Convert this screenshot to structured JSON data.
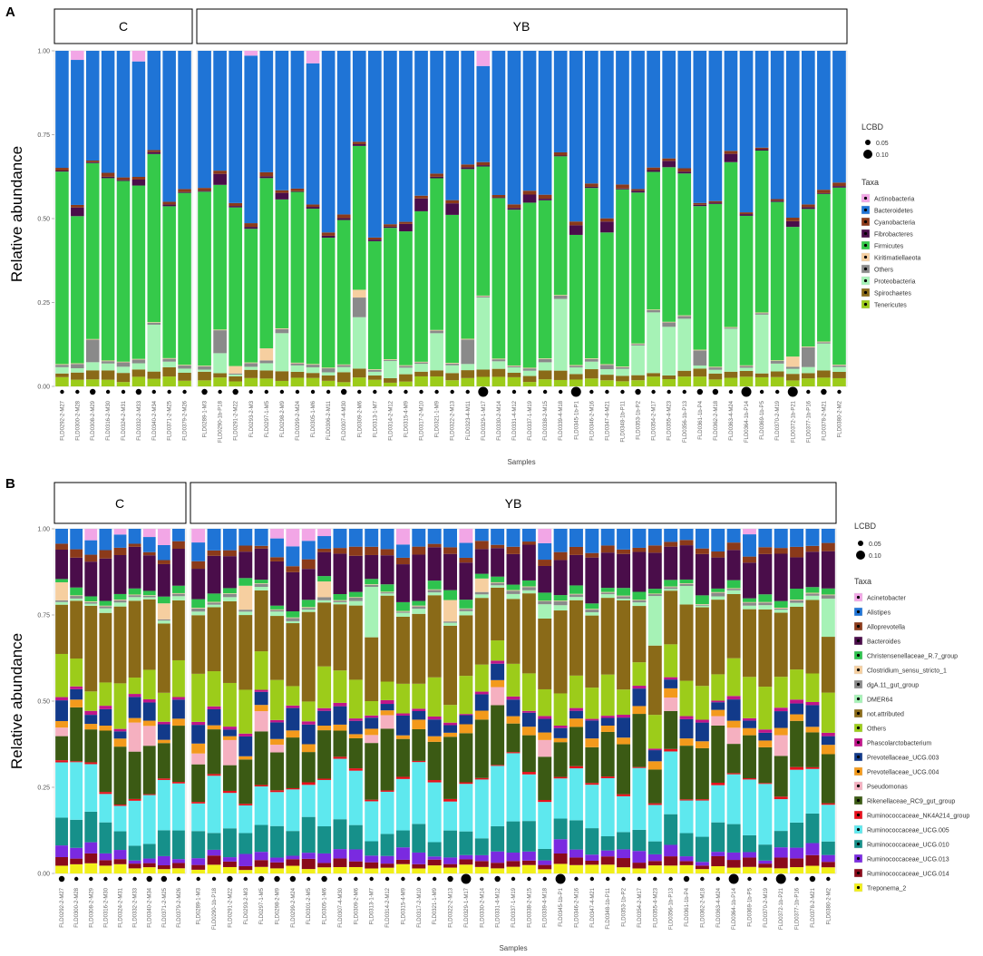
{
  "chart_data": [
    {
      "type": "bar",
      "panel_label": "A",
      "strip_labels": [
        "C",
        "YB"
      ],
      "ylabel": "Relative abundance",
      "xlabel": "Samples",
      "ylim": [
        0,
        1
      ],
      "yticks": [
        "0.00",
        "0.25",
        "0.50",
        "0.75",
        "1.00"
      ],
      "groups": [
        {
          "name": "C",
          "categories": [
            "FLD0292-2-M27",
            "FLD0300-2-M28",
            "FLD0308-2-M29",
            "FLD0316-2-M30",
            "FLD0324-2-M31",
            "FLD0332-2-M33",
            "FLD0340-2-M34",
            "FLD0371-2-M25",
            "FLD0379-2-M26"
          ]
        },
        {
          "name": "YB",
          "categories": [
            "FLD0289-1-M3",
            "FLD0290-1b-P18",
            "FLD0291-2-M22",
            "FLD0293-2-M3",
            "FLD0297-1-M5",
            "FLD0298-2-M9",
            "FLD0299-2-M24",
            "FLD0305-1-M6",
            "FLD0306-2-M11",
            "FLD0307-4-M30",
            "FLD0309-2-M6",
            "FLD0313-1-M7",
            "FLD0314-2-M12",
            "FLD0315-4-M9",
            "FLD0317-2-M10",
            "FLD0321-1-M9",
            "FLD0322-2-M13",
            "FLD0323-4-M11",
            "FLD0329-1-M17",
            "FLD0330-2-M14",
            "FLD0331-4-M12",
            "FLD0337-1-M19",
            "FLD0338-2-M15",
            "FLD0339-4-M18",
            "FLD0345-1b-P1",
            "FLD0346-2-M16",
            "FLD0347-4-M21",
            "FLD0348-1b-P11",
            "FLD0353-1b-P2",
            "FLD0354-2-M17",
            "FLD0355-4-M23",
            "FLD0356-1b-P13",
            "FLD0361-1b-P4",
            "FLD0362-2-M18",
            "FLD0363-4-M24",
            "FLD0364-1b-P14",
            "FLD0369-1b-P5",
            "FLD0370-2-M19",
            "FLD0372-1b-P21",
            "FLD0377-1b-P16",
            "FLD0378-2-M21",
            "FLD0380-2-M2"
          ]
        }
      ],
      "lcbd_legend": {
        "title": "LCBD",
        "values": [
          "0.05",
          "0.10"
        ]
      },
      "lcbd_large_samples": [
        "FLD0329-1-M17",
        "FLD0345-1b-P1",
        "FLD0364-1b-P14",
        "FLD0372-1b-P21"
      ],
      "taxa_legend_title": "Taxa",
      "taxa": [
        {
          "name": "Actinobacteria",
          "color": "#f2a6e6"
        },
        {
          "name": "Bacteroidetes",
          "color": "#1f74d6"
        },
        {
          "name": "Cyanobacteria",
          "color": "#8b3a1a"
        },
        {
          "name": "Fibrobacteres",
          "color": "#4a0d4a"
        },
        {
          "name": "Firmicutes",
          "color": "#35c94a"
        },
        {
          "name": "Kiritimatiellaeota",
          "color": "#f6cfa0"
        },
        {
          "name": "Others",
          "color": "#8a8a8a"
        },
        {
          "name": "Proteobacteria",
          "color": "#a6f2b6"
        },
        {
          "name": "Spirochaetes",
          "color": "#8a6a18"
        },
        {
          "name": "Tenericutes",
          "color": "#9ccc1a"
        }
      ]
    },
    {
      "type": "bar",
      "panel_label": "B",
      "strip_labels": [
        "C",
        "YB"
      ],
      "ylabel": "Relative abundance",
      "xlabel": "Samples",
      "ylim": [
        0,
        1
      ],
      "yticks": [
        "0.00",
        "0.25",
        "0.50",
        "0.75",
        "1.00"
      ],
      "groups": [
        {
          "name": "C",
          "categories": [
            "FLD0292-2-M27",
            "FLD0300-2-M28",
            "FLD0308-2-M29",
            "FLD0316-2-M30",
            "FLD0324-2-M31",
            "FLD0332-2-M33",
            "FLD0340-2-M34",
            "FLD0371-2-M25",
            "FLD0379-2-M26"
          ]
        },
        {
          "name": "YB",
          "categories": [
            "FLD0289-1-M3",
            "FLD0290-1b-P18",
            "FLD0291-2-M22",
            "FLD0293-2-M3",
            "FLD0297-1-M5",
            "FLD0298-2-M9",
            "FLD0299-2-M24",
            "FLD0301-2-M5",
            "FLD0305-1-M6",
            "FLD0307-4-M30",
            "FLD0309-2-M6",
            "FLD0313-1-M7",
            "FLD0314-2-M12",
            "FLD0315-4-M9",
            "FLD0317-2-M10",
            "FLD0321-1-M9",
            "FLD0322-2-M13",
            "FLD0329-1-M17",
            "FLD0330-2-M14",
            "FLD0331-4-M12",
            "FLD0337-1-M19",
            "FLD0338-2-M15",
            "FLD0339-4-M18",
            "FLD0345-1b-P1",
            "FLD0346-2-M16",
            "FLD0347-4-M21",
            "FLD0348-1b-P11",
            "FLD0353-1b-P2",
            "FLD0354-2-M17",
            "FLD0355-4-M23",
            "FLD0356-1b-P13",
            "FLD0361-1b-P4",
            "FLD0362-2-M18",
            "FLD0363-4-M24",
            "FLD0364-1b-P14",
            "FLD0369-1b-P5",
            "FLD0370-2-M19",
            "FLD0372-1b-P21",
            "FLD0377-1b-P16",
            "FLD0378-2-M21",
            "FLD0380-2-M2"
          ]
        }
      ],
      "lcbd_legend": {
        "title": "LCBD",
        "values": [
          "0.05",
          "0.10"
        ]
      },
      "lcbd_large_samples": [
        "FLD0329-1-M17",
        "FLD0345-1b-P1",
        "FLD0364-1b-P14",
        "FLD0372-1b-P21"
      ],
      "taxa_legend_title": "Taxa",
      "taxa": [
        {
          "name": "Acinetobacter",
          "color": "#f2a6e6"
        },
        {
          "name": "Alistipes",
          "color": "#1f74d6"
        },
        {
          "name": "Alloprevotella",
          "color": "#8b3a1a"
        },
        {
          "name": "Bacteroides",
          "color": "#4a0d4a"
        },
        {
          "name": "Christensenellaceae_R.7_group",
          "color": "#2ec24e"
        },
        {
          "name": "Clostridium_sensu_stricto_1",
          "color": "#f6cfa0"
        },
        {
          "name": "dgA.11_gut_group",
          "color": "#8a8a8a"
        },
        {
          "name": "DMER64",
          "color": "#a6f2b6"
        },
        {
          "name": "not.attributed",
          "color": "#8a6a18"
        },
        {
          "name": "Others",
          "color": "#9ccc1a"
        },
        {
          "name": "Phascolarctobacterium",
          "color": "#c0158a"
        },
        {
          "name": "Prevotellaceae_UCG.003",
          "color": "#123a8a"
        },
        {
          "name": "Prevotellaceae_UCG.004",
          "color": "#f39a1c"
        },
        {
          "name": "Pseudomonas",
          "color": "#f5b0c0"
        },
        {
          "name": "Rikenellaceae_RC9_gut_group",
          "color": "#3b5a14"
        },
        {
          "name": "Ruminococcaceae_NK4A214_group",
          "color": "#e8101c"
        },
        {
          "name": "Ruminococcaceae_UCG.005",
          "color": "#5ee8ee"
        },
        {
          "name": "Ruminococcaceae_UCG.010",
          "color": "#16908a"
        },
        {
          "name": "Ruminococcaceae_UCG.013",
          "color": "#7a2ae0"
        },
        {
          "name": "Ruminococcaceae_UCG.014",
          "color": "#8a0a1a"
        },
        {
          "name": "Treponema_2",
          "color": "#f2f01a"
        }
      ]
    }
  ]
}
